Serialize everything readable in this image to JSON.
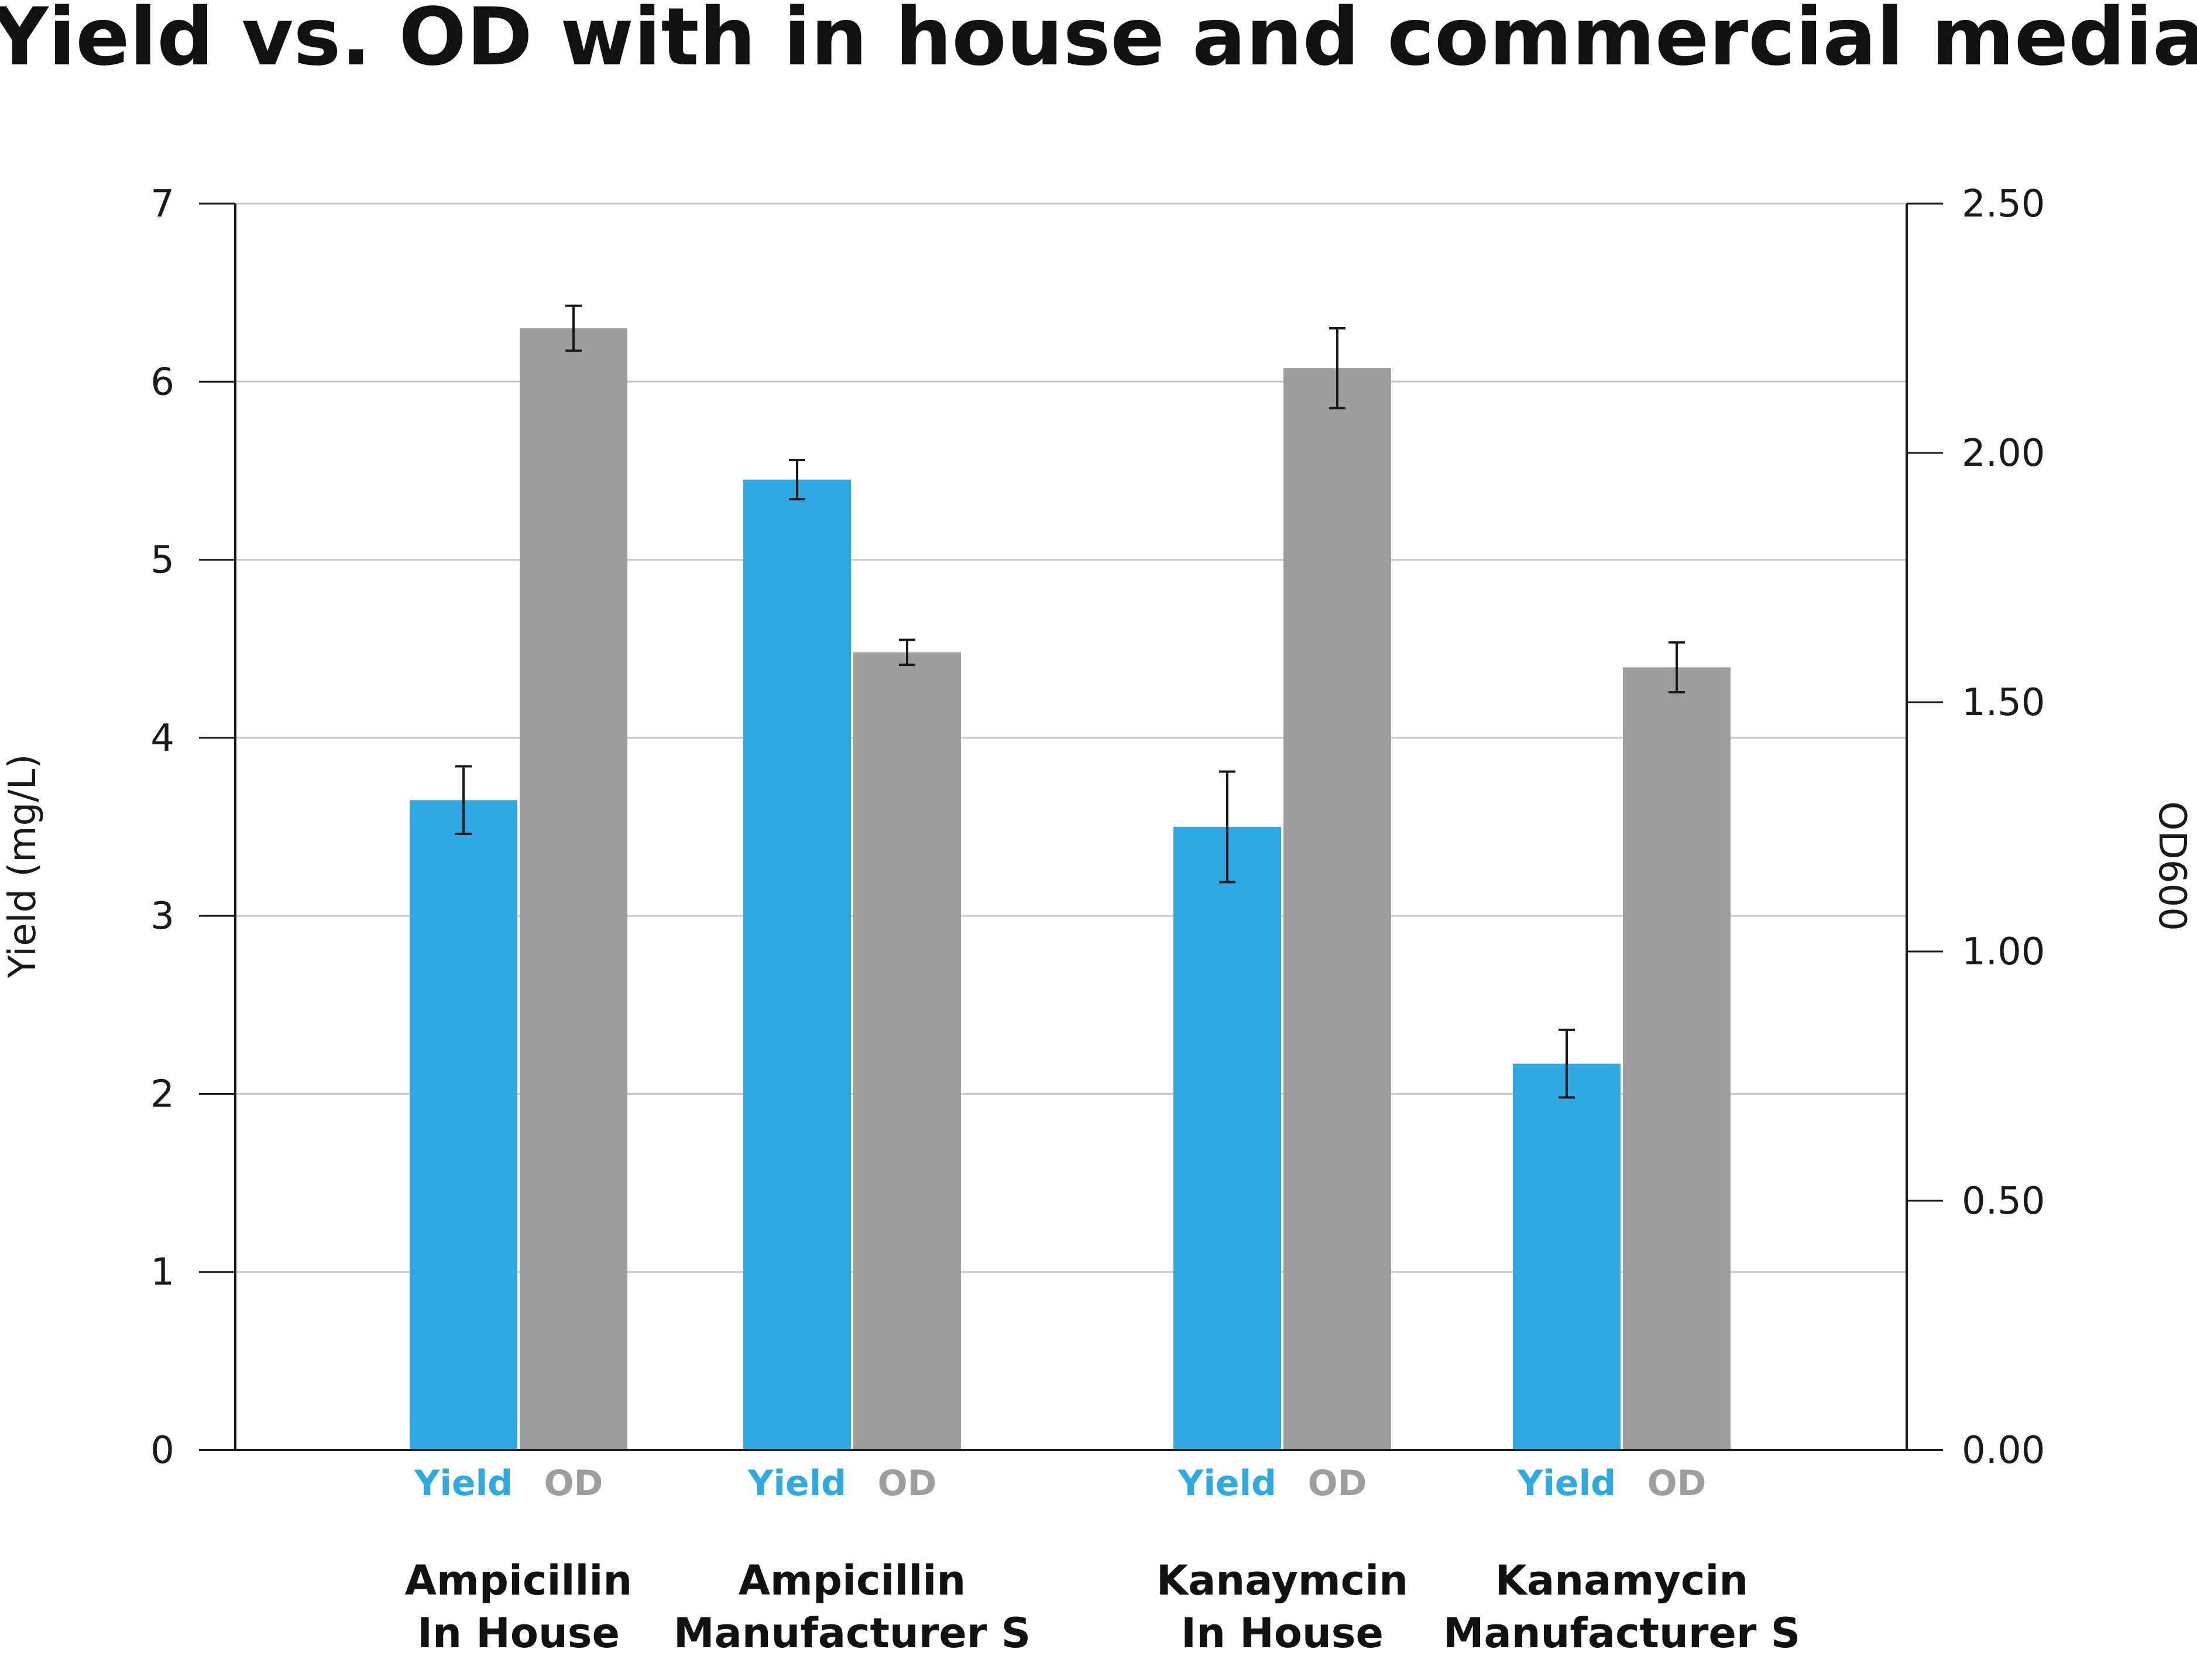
{
  "chart_data": {
    "type": "bar",
    "title": "Yield vs. OD with in house and commercial media",
    "ylabel_left": "Yield (mg/L)",
    "ylabel_right": "OD600",
    "ylim_left": [
      0,
      7
    ],
    "yticks_left": [
      "0",
      "1",
      "2",
      "3",
      "4",
      "5",
      "6",
      "7"
    ],
    "ylim_right": [
      0,
      2.5
    ],
    "yticks_right": [
      "0.00",
      "0.50",
      "1.00",
      "1.50",
      "2.00",
      "2.50"
    ],
    "grid": true,
    "categories": [
      {
        "line1": "Ampicillin",
        "line2": "In House"
      },
      {
        "line1": "Ampicillin",
        "line2": "Manufacturer S"
      },
      {
        "line1": "Kanaymcin",
        "line2": "In House"
      },
      {
        "line1": "Kanamycin",
        "line2": "Manufacturer S"
      }
    ],
    "series": [
      {
        "name": "Yield",
        "axis": "left",
        "color": "#2fa9e1",
        "values": [
          3.65,
          5.45,
          3.5,
          2.17
        ],
        "errors": [
          0.19,
          0.11,
          0.31,
          0.19
        ]
      },
      {
        "name": "OD",
        "axis": "right",
        "color": "#9e9e9e",
        "values": [
          2.25,
          1.6,
          2.17,
          1.57
        ],
        "errors": [
          0.045,
          0.025,
          0.08,
          0.05
        ]
      }
    ],
    "bar_label_colors": {
      "Yield": "#2fa9e1",
      "OD": "#9e9e9e"
    }
  }
}
